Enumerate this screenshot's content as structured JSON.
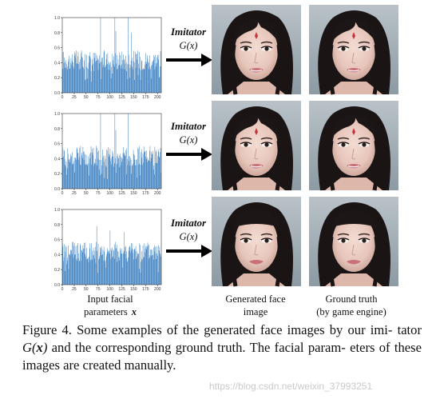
{
  "figure": {
    "rows": [
      {
        "imitator_label": "Imitator",
        "imitator_fn": "G(x)"
      },
      {
        "imitator_label": "Imitator",
        "imitator_fn": "G(x)"
      },
      {
        "imitator_label": "Imitator",
        "imitator_fn": "G(x)"
      }
    ],
    "column_labels": {
      "input_line1": "Input facial",
      "input_line2": "parameters",
      "input_symbol": "x",
      "generated_line1": "Generated face",
      "generated_line2": "image",
      "truth_line1": "Ground truth",
      "truth_line2": "(by game engine)"
    }
  },
  "caption": {
    "part1": "Figure 4. Some examples of the generated face images by our imi-",
    "part2a": "tator ",
    "part2_math": "G(",
    "part2_bx": "x",
    "part2_math_end": ")",
    "part2b": " and the corresponding ground truth. The facial param-",
    "part3": "eters of these images are created manually."
  },
  "watermark": "https://blog.csdn.net/weixin_37993251",
  "colors": {
    "bar": "#3b7fc0",
    "arrow": "#000000"
  },
  "chart_data": [
    {
      "type": "bar",
      "title": "",
      "xlabel": "",
      "ylabel": "",
      "xlim": [
        0,
        208
      ],
      "ylim": [
        0,
        1.0
      ],
      "xticks": [
        0,
        25,
        50,
        75,
        100,
        125,
        150,
        175,
        200
      ],
      "yticks": [
        0.0,
        0.2,
        0.4,
        0.6,
        0.8,
        1.0
      ],
      "n_bars": 208,
      "tall_bars": [
        {
          "x": 80,
          "value": 1.0
        },
        {
          "x": 110,
          "value": 1.0
        },
        {
          "x": 138,
          "value": 1.0
        },
        {
          "x": 112,
          "value": 0.82
        },
        {
          "x": 145,
          "value": 0.8
        }
      ],
      "typical_range": [
        0.3,
        0.6
      ]
    },
    {
      "type": "bar",
      "title": "",
      "xlabel": "",
      "ylabel": "",
      "xlim": [
        0,
        208
      ],
      "ylim": [
        0,
        1.0
      ],
      "xticks": [
        0,
        25,
        50,
        75,
        100,
        125,
        150,
        175,
        200
      ],
      "yticks": [
        0.0,
        0.2,
        0.4,
        0.6,
        0.8,
        1.0
      ],
      "n_bars": 208,
      "tall_bars": [
        {
          "x": 80,
          "value": 1.0
        },
        {
          "x": 110,
          "value": 1.0
        },
        {
          "x": 138,
          "value": 1.0
        },
        {
          "x": 112,
          "value": 0.78
        }
      ],
      "typical_range": [
        0.3,
        0.6
      ]
    },
    {
      "type": "bar",
      "title": "",
      "xlabel": "",
      "ylabel": "",
      "xlim": [
        0,
        208
      ],
      "ylim": [
        0,
        1.0
      ],
      "xticks": [
        0,
        25,
        50,
        75,
        100,
        125,
        150,
        175,
        200
      ],
      "yticks": [
        0.0,
        0.2,
        0.4,
        0.6,
        0.8,
        1.0
      ],
      "n_bars": 208,
      "tall_bars": [
        {
          "x": 72,
          "value": 0.78
        },
        {
          "x": 100,
          "value": 0.72
        },
        {
          "x": 130,
          "value": 0.7
        }
      ],
      "typical_range": [
        0.3,
        0.6
      ]
    }
  ]
}
